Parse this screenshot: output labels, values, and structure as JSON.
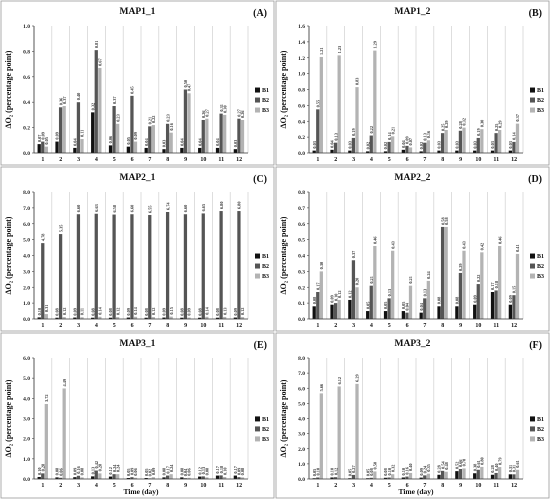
{
  "figure": {
    "xlabel": "Time (day)",
    "ylabel": "ΔO₂ (percentage point)",
    "colors": {
      "B1": "#111111",
      "B2": "#555555",
      "B3": "#b3b3b3"
    }
  },
  "chart_data": [
    {
      "type": "bar",
      "panel": "A",
      "title": "MAP1_1",
      "categories": [
        "1",
        "2",
        "3",
        "4",
        "5",
        "6",
        "7",
        "8",
        "9",
        "10",
        "11",
        "12"
      ],
      "ylim": [
        0,
        1.0
      ],
      "yticks": [
        "0.0",
        "0.2",
        "0.4",
        "0.6",
        "0.8",
        "1.0"
      ],
      "ylabel": "ΔO₂ (percentage point)",
      "xlabel": "",
      "legend": [
        "B1",
        "B2",
        "B3"
      ],
      "legend_position": "right",
      "series": [
        {
          "name": "B1",
          "values": [
            0.07,
            0.09,
            0.04,
            0.32,
            0.06,
            0.05,
            0.04,
            0.03,
            0.04,
            0.04,
            0.04,
            0.03
          ]
        },
        {
          "name": "B2",
          "values": [
            0.09,
            0.36,
            0.4,
            0.81,
            0.37,
            0.45,
            0.21,
            0.23,
            0.5,
            0.26,
            0.31,
            0.27
          ]
        },
        {
          "name": "B3",
          "values": [
            0.05,
            0.37,
            0.11,
            0.67,
            0.23,
            0.09,
            0.22,
            0.16,
            0.47,
            0.27,
            0.3,
            0.26
          ]
        }
      ]
    },
    {
      "type": "bar",
      "panel": "B",
      "title": "MAP1_2",
      "categories": [
        "1",
        "2",
        "3",
        "4",
        "5",
        "6",
        "7",
        "8",
        "9",
        "10",
        "11",
        "12"
      ],
      "ylim": [
        0,
        1.6
      ],
      "yticks": [
        "0.0",
        "0.2",
        "0.4",
        "0.6",
        "0.8",
        "1.0",
        "1.2",
        "1.4",
        "1.6"
      ],
      "ylabel": "ΔO₂ (percentage point)",
      "xlabel": "",
      "legend": [
        "B1",
        "B2",
        "B3"
      ],
      "legend_position": "right",
      "series": [
        {
          "name": "B1",
          "values": [
            0.03,
            0.04,
            0.03,
            0.02,
            0.02,
            0.04,
            0.02,
            0.03,
            0.03,
            0.03,
            0.03,
            0.03
          ]
        },
        {
          "name": "B2",
          "values": [
            0.55,
            0.13,
            0.19,
            0.22,
            0.14,
            0.09,
            0.13,
            0.25,
            0.28,
            0.19,
            0.25,
            0.14
          ]
        },
        {
          "name": "B3",
          "values": [
            1.21,
            1.23,
            0.83,
            1.29,
            0.21,
            0.07,
            0.16,
            0.29,
            0.32,
            0.3,
            0.29,
            0.37
          ]
        }
      ]
    },
    {
      "type": "bar",
      "panel": "C",
      "title": "MAP2_1",
      "categories": [
        "1",
        "2",
        "3",
        "4",
        "5",
        "6",
        "7",
        "8",
        "9",
        "10",
        "11",
        "12"
      ],
      "ylim": [
        0,
        8.0
      ],
      "yticks": [
        "0.0",
        "1.0",
        "2.0",
        "3.0",
        "4.0",
        "5.0",
        "6.0",
        "7.0",
        "8.0"
      ],
      "ylabel": "ΔO₂ (percentage point)",
      "xlabel": "",
      "legend": [
        "B1",
        "B2",
        "B3"
      ],
      "legend_position": "right",
      "series": [
        {
          "name": "B1",
          "values": [
            0.1,
            0.08,
            0.09,
            0.08,
            0.08,
            0.09,
            0.08,
            0.09,
            0.08,
            0.08,
            0.08,
            0.09
          ]
        },
        {
          "name": "B2",
          "values": [
            4.78,
            5.35,
            6.6,
            6.63,
            6.58,
            6.6,
            6.55,
            6.74,
            6.6,
            6.65,
            6.8,
            6.8
          ]
        },
        {
          "name": "B3",
          "values": [
            0.31,
            0.12,
            0.11,
            0.14,
            0.12,
            0.14,
            0.12,
            0.15,
            0.09,
            0.14,
            0.13,
            0.12
          ]
        }
      ]
    },
    {
      "type": "bar",
      "panel": "D",
      "title": "MAP2_2",
      "categories": [
        "1",
        "2",
        "3",
        "4",
        "5",
        "6",
        "7",
        "8",
        "9",
        "10",
        "11",
        "12"
      ],
      "ylim": [
        0,
        0.8
      ],
      "yticks": [
        "0.0",
        "0.1",
        "0.2",
        "0.3",
        "0.4",
        "0.5",
        "0.6",
        "0.7",
        "0.8"
      ],
      "ylabel": "ΔO₂ (percentage point)",
      "xlabel": "",
      "legend": [
        "B1",
        "B2",
        "B3"
      ],
      "legend_position": "right",
      "series": [
        {
          "name": "B1",
          "values": [
            0.08,
            0.09,
            0.12,
            0.05,
            0.05,
            0.05,
            0.04,
            0.08,
            0.08,
            0.09,
            0.17,
            0.09
          ]
        },
        {
          "name": "B2",
          "values": [
            0.17,
            0.1,
            0.37,
            0.21,
            0.13,
            0.04,
            0.13,
            0.58,
            0.29,
            0.22,
            0.18,
            0.15
          ]
        },
        {
          "name": "B3",
          "values": [
            0.3,
            0.12,
            0.2,
            0.46,
            0.43,
            0.21,
            0.24,
            0.58,
            0.43,
            0.42,
            0.46,
            0.41
          ]
        }
      ]
    },
    {
      "type": "bar",
      "panel": "E",
      "title": "MAP3_1",
      "categories": [
        "1",
        "2",
        "3",
        "4",
        "5",
        "6",
        "7",
        "8",
        "9",
        "10",
        "11",
        "12"
      ],
      "ylim": [
        0,
        6.0
      ],
      "yticks": [
        "0.0",
        "1.0",
        "2.0",
        "3.0",
        "4.0",
        "5.0",
        "6.0"
      ],
      "ylabel": "ΔO₂ (percentage point)",
      "xlabel": "Time (day)",
      "legend": [
        "B1",
        "B2",
        "B3"
      ],
      "legend_position": "right",
      "series": [
        {
          "name": "B1",
          "values": [
            0.1,
            0.08,
            0.09,
            0.13,
            0.12,
            0.05,
            0.05,
            0.08,
            0.08,
            0.12,
            0.17,
            0.17
          ]
        },
        {
          "name": "B2",
          "values": [
            0.28,
            0.06,
            0.16,
            0.42,
            0.24,
            0.09,
            0.02,
            0.17,
            0.04,
            0.13,
            0.18,
            0.09
          ]
        },
        {
          "name": "B3",
          "values": [
            3.72,
            4.49,
            0.08,
            0.28,
            0.24,
            0.06,
            0.09,
            0.24,
            0.06,
            0.08,
            0.1,
            0.08
          ]
        }
      ]
    },
    {
      "type": "bar",
      "panel": "F",
      "title": "MAP3_2",
      "categories": [
        "1",
        "2",
        "3",
        "4",
        "5",
        "6",
        "7",
        "8",
        "9",
        "10",
        "11",
        "12"
      ],
      "ylim": [
        0,
        8.0
      ],
      "yticks": [
        "0.0",
        "1.0",
        "2.0",
        "3.0",
        "4.0",
        "5.0",
        "6.0",
        "7.0",
        "8.0"
      ],
      "ylabel": "ΔO₂ (percentage point)",
      "xlabel": "Time (day)",
      "legend": [
        "B1",
        "B2",
        "B3"
      ],
      "legend_position": "right",
      "series": [
        {
          "name": "B1",
          "values": [
            0.05,
            0.1,
            0.05,
            0.05,
            0.08,
            0.1,
            0.09,
            0.28,
            0.52,
            0.38,
            0.28,
            0.31
          ]
        },
        {
          "name": "B2",
          "values": [
            0.1,
            0.12,
            0.27,
            0.08,
            0.1,
            0.16,
            0.24,
            0.54,
            0.66,
            0.61,
            0.4,
            0.31
          ]
        },
        {
          "name": "B3",
          "values": [
            5.66,
            6.12,
            6.29,
            0.5,
            0.32,
            0.4,
            0.35,
            0.48,
            0.7,
            0.8,
            0.79,
            0.61
          ]
        }
      ]
    }
  ]
}
